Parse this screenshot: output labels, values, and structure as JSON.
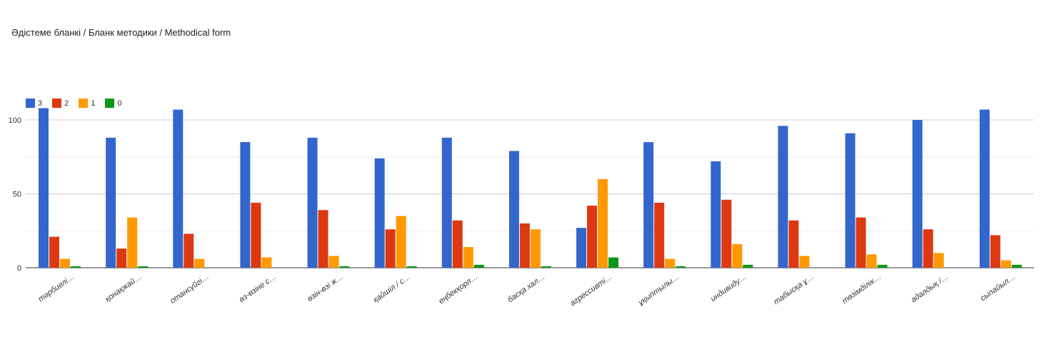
{
  "chart_data": {
    "type": "bar",
    "title": "Әдістеме бланкі / Бланк методики / Methodical form",
    "xlabel": "",
    "ylabel": "",
    "ylim": [
      0,
      120
    ],
    "yticks": [
      0,
      50,
      100
    ],
    "grid": true,
    "legend_placement": "top-left",
    "categories": [
      "тәрбиелі…",
      "қонақжай…",
      "отансүйгі…",
      "өз-өзіне с…",
      "өзін-өзі ж…",
      "қайшіл / с…",
      "еңбекқорл…",
      "басқа хал…",
      "агрессивті…",
      "ұқыптылы…",
      "индивиду…",
      "табысқа ұ…",
      "төзімділік…",
      "адалдық /…",
      "сыпайыл…"
    ],
    "series": [
      {
        "name": "3",
        "color": "#3366cc",
        "values": [
          108,
          88,
          107,
          85,
          88,
          74,
          88,
          79,
          27,
          85,
          72,
          96,
          91,
          100,
          107
        ]
      },
      {
        "name": "2",
        "color": "#dc3912",
        "values": [
          21,
          13,
          23,
          44,
          39,
          26,
          32,
          30,
          42,
          44,
          46,
          32,
          34,
          26,
          22
        ]
      },
      {
        "name": "1",
        "color": "#ff9900",
        "values": [
          6,
          34,
          6,
          7,
          8,
          35,
          14,
          26,
          60,
          6,
          16,
          8,
          9,
          10,
          5
        ]
      },
      {
        "name": "0",
        "color": "#109618",
        "values": [
          1,
          1,
          0,
          0,
          1,
          1,
          2,
          1,
          7,
          1,
          2,
          0,
          2,
          0,
          2
        ]
      }
    ]
  }
}
